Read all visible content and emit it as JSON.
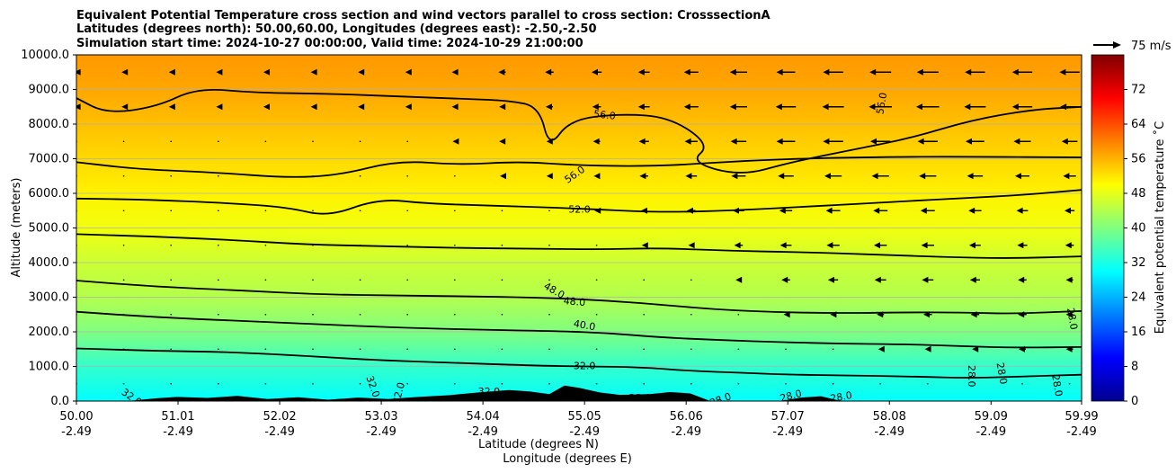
{
  "chart_data": {
    "type": "heatmap",
    "title_lines": [
      "Equivalent Potential Temperature cross section and wind vectors parallel to cross section: CrosssectionA",
      "Latitudes (degrees north): 50.00,60.00, Longitudes (degrees east): -2.50,-2.50",
      "Simulation start time: 2024-10-27 00:00:00, Valid time: 2024-10-29 21:00:00"
    ],
    "ylabel": "Altitude (meters)",
    "xlabel": "Latitude (degrees N)",
    "xlabel2": "Longitude (degrees E)",
    "xlim": [
      50.0,
      59.99
    ],
    "ylim": [
      0,
      10000
    ],
    "grid": "horizontal",
    "x_ticks": [
      {
        "lat": "50.00",
        "lon": "-2.49",
        "value": 50.0
      },
      {
        "lat": "51.01",
        "lon": "-2.49",
        "value": 51.01
      },
      {
        "lat": "52.02",
        "lon": "-2.49",
        "value": 52.02
      },
      {
        "lat": "53.03",
        "lon": "-2.49",
        "value": 53.03
      },
      {
        "lat": "54.04",
        "lon": "-2.49",
        "value": 54.04
      },
      {
        "lat": "55.05",
        "lon": "-2.49",
        "value": 55.05
      },
      {
        "lat": "56.06",
        "lon": "-2.49",
        "value": 56.06
      },
      {
        "lat": "57.07",
        "lon": "-2.49",
        "value": 57.07
      },
      {
        "lat": "58.08",
        "lon": "-2.49",
        "value": 58.08
      },
      {
        "lat": "59.09",
        "lon": "-2.49",
        "value": 59.09
      },
      {
        "lat": "59.99",
        "lon": "-2.49",
        "value": 59.99
      }
    ],
    "y_ticks": [
      {
        "label": "0.0",
        "value": 0
      },
      {
        "label": "1000.0",
        "value": 1000
      },
      {
        "label": "2000.0",
        "value": 2000
      },
      {
        "label": "3000.0",
        "value": 3000
      },
      {
        "label": "4000.0",
        "value": 4000
      },
      {
        "label": "5000.0",
        "value": 5000
      },
      {
        "label": "6000.0",
        "value": 6000
      },
      {
        "label": "7000.0",
        "value": 7000
      },
      {
        "label": "8000.0",
        "value": 8000
      },
      {
        "label": "9000.0",
        "value": 9000
      },
      {
        "label": "10000.0",
        "value": 10000
      }
    ],
    "colorbar": {
      "label": "Equivalent potential temperature ˚C",
      "range": [
        0,
        80
      ],
      "ticks": [
        "0",
        "8",
        "16",
        "24",
        "32",
        "40",
        "48",
        "56",
        "64",
        "72"
      ],
      "tick_values": [
        0,
        8,
        16,
        24,
        32,
        40,
        48,
        56,
        64,
        72
      ],
      "stops": [
        {
          "v": 0,
          "color": "#00008f"
        },
        {
          "v": 10,
          "color": "#0000ff"
        },
        {
          "v": 20,
          "color": "#0080ff"
        },
        {
          "v": 30,
          "color": "#00ffff"
        },
        {
          "v": 40,
          "color": "#80ff80"
        },
        {
          "v": 50,
          "color": "#ffff00"
        },
        {
          "v": 60,
          "color": "#ff8000"
        },
        {
          "v": 70,
          "color": "#ff0000"
        },
        {
          "v": 80,
          "color": "#800000"
        }
      ]
    },
    "wind_reference_label": "75 m/s",
    "theta_e_profile": [
      {
        "altitude": 0,
        "theta_e": 30
      },
      {
        "altitude": 1000,
        "theta_e": 34
      },
      {
        "altitude": 2000,
        "theta_e": 40
      },
      {
        "altitude": 3000,
        "theta_e": 44
      },
      {
        "altitude": 4000,
        "theta_e": 46
      },
      {
        "altitude": 5000,
        "theta_e": 49
      },
      {
        "altitude": 6000,
        "theta_e": 51
      },
      {
        "altitude": 7000,
        "theta_e": 53
      },
      {
        "altitude": 8000,
        "theta_e": 55
      },
      {
        "altitude": 9000,
        "theta_e": 57
      },
      {
        "altitude": 10000,
        "theta_e": 58
      }
    ],
    "contours": [
      {
        "level": "32.0",
        "points": [
          [
            50.0,
            1520
          ],
          [
            50.8,
            1450
          ],
          [
            51.5,
            1420
          ],
          [
            52.3,
            1300
          ],
          [
            53.0,
            1180
          ],
          [
            53.8,
            1100
          ],
          [
            54.6,
            1020
          ],
          [
            55.05,
            1000
          ],
          [
            55.6,
            980
          ],
          [
            56.1,
            870
          ],
          [
            56.6,
            820
          ],
          [
            57.1,
            760
          ],
          [
            57.7,
            740
          ],
          [
            58.3,
            710
          ],
          [
            58.9,
            660
          ],
          [
            59.5,
            720
          ],
          [
            59.99,
            760
          ]
        ]
      },
      {
        "level": "40.0",
        "points": [
          [
            50.0,
            2580
          ],
          [
            50.8,
            2420
          ],
          [
            51.6,
            2320
          ],
          [
            52.4,
            2220
          ],
          [
            53.2,
            2120
          ],
          [
            54.0,
            2060
          ],
          [
            54.8,
            2020
          ],
          [
            55.3,
            1960
          ],
          [
            55.8,
            1840
          ],
          [
            56.4,
            1760
          ],
          [
            57.0,
            1700
          ],
          [
            57.6,
            1660
          ],
          [
            58.2,
            1640
          ],
          [
            58.7,
            1600
          ],
          [
            59.3,
            1540
          ],
          [
            59.99,
            1560
          ]
        ]
      },
      {
        "level": "48.0",
        "points": [
          [
            50.0,
            3480
          ],
          [
            50.8,
            3300
          ],
          [
            51.6,
            3200
          ],
          [
            52.4,
            3080
          ],
          [
            53.2,
            3050
          ],
          [
            54.0,
            3020
          ],
          [
            54.7,
            2980
          ],
          [
            55.3,
            2900
          ],
          [
            55.9,
            2760
          ],
          [
            56.4,
            2640
          ],
          [
            57.0,
            2560
          ],
          [
            57.7,
            2540
          ],
          [
            58.2,
            2560
          ],
          [
            58.8,
            2560
          ],
          [
            59.3,
            2520
          ],
          [
            59.99,
            2600
          ]
        ]
      },
      {
        "level": "52.0",
        "points": [
          [
            50.0,
            4820
          ],
          [
            50.7,
            4760
          ],
          [
            51.5,
            4660
          ],
          [
            52.3,
            4520
          ],
          [
            53.0,
            4480
          ],
          [
            53.8,
            4420
          ],
          [
            54.6,
            4400
          ],
          [
            55.2,
            4380
          ],
          [
            55.8,
            4420
          ],
          [
            56.5,
            4340
          ],
          [
            57.2,
            4300
          ],
          [
            57.9,
            4240
          ],
          [
            58.6,
            4160
          ],
          [
            59.3,
            4120
          ],
          [
            59.99,
            4180
          ]
        ]
      },
      {
        "level": "52.0",
        "points": [
          [
            50.0,
            5850
          ],
          [
            50.7,
            5820
          ],
          [
            51.5,
            5720
          ],
          [
            52.1,
            5600
          ],
          [
            52.5,
            5320
          ],
          [
            53.0,
            5850
          ],
          [
            53.5,
            5700
          ],
          [
            54.2,
            5640
          ],
          [
            55.0,
            5560
          ],
          [
            55.8,
            5450
          ],
          [
            56.5,
            5500
          ],
          [
            57.3,
            5620
          ],
          [
            58.1,
            5750
          ],
          [
            58.8,
            5860
          ],
          [
            59.4,
            5950
          ],
          [
            59.99,
            6100
          ]
        ]
      },
      {
        "level": "56.0",
        "points": [
          [
            50.0,
            6900
          ],
          [
            50.6,
            6700
          ],
          [
            51.4,
            6600
          ],
          [
            52.1,
            6450
          ],
          [
            52.6,
            6520
          ],
          [
            53.2,
            6950
          ],
          [
            53.8,
            6820
          ],
          [
            54.4,
            6920
          ],
          [
            54.9,
            6820
          ],
          [
            55.5,
            6780
          ],
          [
            56.0,
            6820
          ],
          [
            56.7,
            6950
          ],
          [
            57.4,
            7020
          ],
          [
            58.1,
            7050
          ],
          [
            58.7,
            7060
          ],
          [
            59.99,
            7040
          ]
        ]
      },
      {
        "level": "56.0",
        "points": [
          [
            50.0,
            8750
          ],
          [
            50.3,
            8300
          ],
          [
            50.8,
            8500
          ],
          [
            51.2,
            9050
          ],
          [
            51.8,
            8900
          ],
          [
            52.5,
            8880
          ],
          [
            53.2,
            8800
          ],
          [
            53.9,
            8720
          ],
          [
            54.3,
            8680
          ],
          [
            54.6,
            8500
          ],
          [
            54.7,
            7300
          ],
          [
            54.9,
            8120
          ],
          [
            55.4,
            8300
          ],
          [
            55.9,
            8200
          ],
          [
            56.3,
            7400
          ],
          [
            56.1,
            6900
          ],
          [
            56.6,
            6500
          ],
          [
            57.1,
            6900
          ],
          [
            57.7,
            7250
          ],
          [
            58.3,
            7600
          ],
          [
            58.9,
            8120
          ],
          [
            59.5,
            8420
          ],
          [
            59.99,
            8500
          ]
        ]
      }
    ],
    "annotations": [
      {
        "text": "56.0",
        "lat": 55.25,
        "alt": 8270,
        "rotate": 6
      },
      {
        "text": "56.0",
        "lat": 54.95,
        "alt": 6550,
        "rotate": -35
      },
      {
        "text": "52.0",
        "lat": 55.0,
        "alt": 5550,
        "rotate": 0
      },
      {
        "text": "56.0",
        "lat": 58.0,
        "alt": 8600,
        "rotate": -80
      },
      {
        "text": "48.0",
        "lat": 54.75,
        "alt": 3200,
        "rotate": 30
      },
      {
        "text": "48.0",
        "lat": 54.95,
        "alt": 2880,
        "rotate": 5
      },
      {
        "text": "40.0",
        "lat": 55.05,
        "alt": 2200,
        "rotate": 10
      },
      {
        "text": "32.0",
        "lat": 55.05,
        "alt": 1020,
        "rotate": 0
      },
      {
        "text": "32.0",
        "lat": 50.55,
        "alt": 120,
        "rotate": 35
      },
      {
        "text": "32.0",
        "lat": 52.95,
        "alt": 420,
        "rotate": 70
      },
      {
        "text": "32.0",
        "lat": 53.2,
        "alt": 230,
        "rotate": -75
      },
      {
        "text": "32.0",
        "lat": 54.1,
        "alt": 280,
        "rotate": 0
      },
      {
        "text": "28.0",
        "lat": 55.6,
        "alt": 100,
        "rotate": 0
      },
      {
        "text": "28.0",
        "lat": 56.4,
        "alt": 50,
        "rotate": -20
      },
      {
        "text": "28.0",
        "lat": 57.1,
        "alt": 160,
        "rotate": -15
      },
      {
        "text": "28.0",
        "lat": 57.6,
        "alt": 130,
        "rotate": -10
      },
      {
        "text": "28.0",
        "lat": 58.9,
        "alt": 720,
        "rotate": 90
      },
      {
        "text": "28.0",
        "lat": 59.2,
        "alt": 800,
        "rotate": 80
      },
      {
        "text": "28.0",
        "lat": 59.75,
        "alt": 450,
        "rotate": 80
      },
      {
        "text": "28.0",
        "lat": 59.9,
        "alt": 2380,
        "rotate": 80
      }
    ],
    "terrain": [
      [
        50.0,
        0
      ],
      [
        50.5,
        0
      ],
      [
        50.8,
        80
      ],
      [
        51.0,
        120
      ],
      [
        51.3,
        90
      ],
      [
        51.6,
        150
      ],
      [
        51.9,
        60
      ],
      [
        52.2,
        110
      ],
      [
        52.5,
        40
      ],
      [
        52.8,
        100
      ],
      [
        53.1,
        60
      ],
      [
        53.4,
        120
      ],
      [
        53.7,
        170
      ],
      [
        54.0,
        250
      ],
      [
        54.3,
        320
      ],
      [
        54.5,
        280
      ],
      [
        54.7,
        200
      ],
      [
        54.85,
        450
      ],
      [
        55.0,
        380
      ],
      [
        55.2,
        250
      ],
      [
        55.4,
        180
      ],
      [
        55.7,
        200
      ],
      [
        55.9,
        260
      ],
      [
        56.1,
        220
      ],
      [
        56.3,
        0
      ],
      [
        57.0,
        0
      ],
      [
        57.2,
        100
      ],
      [
        57.4,
        140
      ],
      [
        57.6,
        0
      ],
      [
        59.99,
        0
      ]
    ],
    "wind_lats": [
      50.0,
      50.47,
      50.94,
      51.41,
      51.88,
      52.35,
      52.82,
      53.29,
      53.76,
      54.23,
      54.7,
      55.17,
      55.64,
      56.11,
      56.58,
      57.05,
      57.52,
      57.99,
      58.46,
      58.93,
      59.4,
      59.87
    ],
    "wind_alts": [
      500,
      1500,
      2500,
      3500,
      4500,
      5500,
      6500,
      7500,
      8500,
      9500
    ],
    "wind_u": [
      [
        0,
        0,
        0,
        0,
        0,
        0,
        0,
        0,
        0,
        0,
        0,
        0,
        0,
        0,
        0,
        0,
        0,
        0,
        0,
        0,
        0,
        0
      ],
      [
        0,
        0,
        0,
        0,
        0,
        0,
        0,
        0,
        0,
        0,
        0,
        0,
        0,
        0,
        0,
        0,
        0,
        -3,
        -4,
        -4,
        -5,
        -5
      ],
      [
        0,
        0,
        0,
        0,
        0,
        0,
        0,
        0,
        0,
        0,
        0,
        0,
        0,
        0,
        0,
        -3,
        -4,
        -5,
        -6,
        -6,
        -6,
        -5
      ],
      [
        0,
        0,
        0,
        0,
        0,
        0,
        0,
        0,
        0,
        0,
        0,
        0,
        0,
        0,
        -4,
        -6,
        -7,
        -8,
        -8,
        -7,
        -6,
        -5
      ],
      [
        0,
        0,
        0,
        0,
        0,
        0,
        0,
        0,
        0,
        0,
        0,
        0,
        -3,
        -4,
        -6,
        -8,
        -9,
        -9,
        -9,
        -8,
        -7,
        -6
      ],
      [
        0,
        0,
        0,
        0,
        0,
        0,
        0,
        0,
        0,
        0,
        0,
        -3,
        -4,
        -6,
        -8,
        -9,
        -10,
        -10,
        -10,
        -9,
        -8,
        -7
      ],
      [
        0,
        0,
        0,
        0,
        0,
        0,
        0,
        0,
        0,
        -3,
        -4,
        -4,
        -6,
        -8,
        -10,
        -11,
        -12,
        -12,
        -12,
        -11,
        -10,
        -9
      ],
      [
        0,
        0,
        0,
        0,
        0,
        0,
        0,
        0,
        -3,
        -4,
        -4,
        -5,
        -7,
        -9,
        -11,
        -13,
        -14,
        -14,
        -14,
        -13,
        -12,
        -11
      ],
      [
        -3,
        -3,
        -3,
        -3,
        -3,
        -3,
        -3,
        -3,
        -4,
        -4,
        -5,
        -6,
        -8,
        -10,
        -12,
        -14,
        -15,
        -16,
        -16,
        -15,
        -14,
        -13
      ],
      [
        -3,
        -3,
        -3,
        -3,
        -3,
        -3,
        -3,
        -3,
        -4,
        -5,
        -6,
        -7,
        -8,
        -10,
        -12,
        -13,
        -14,
        -15,
        -15,
        -14,
        -14,
        -14
      ]
    ]
  }
}
